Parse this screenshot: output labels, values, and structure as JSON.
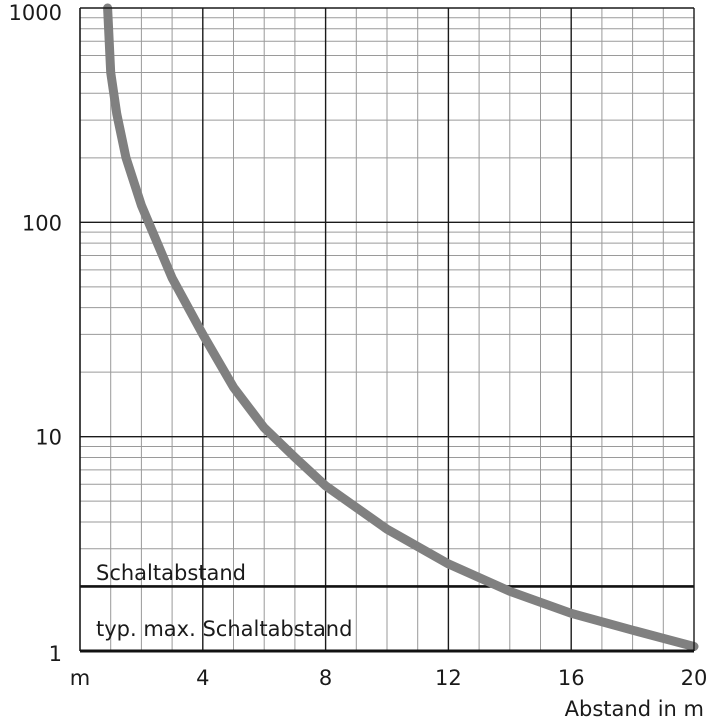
{
  "chart_data": {
    "type": "line",
    "title": "",
    "xlabel": "Abstand in m",
    "ylabel": "",
    "xlim": [
      0,
      20
    ],
    "ylim": [
      1,
      1000
    ],
    "yscale": "log",
    "grid": true,
    "x_ticks": [
      {
        "value": 0,
        "label": "m"
      },
      {
        "value": 4,
        "label": "4"
      },
      {
        "value": 8,
        "label": "8"
      },
      {
        "value": 12,
        "label": "12"
      },
      {
        "value": 16,
        "label": "16"
      },
      {
        "value": 20,
        "label": "20"
      }
    ],
    "y_ticks": [
      {
        "value": 1,
        "label": "1"
      },
      {
        "value": 10,
        "label": "10"
      },
      {
        "value": 100,
        "label": "100"
      },
      {
        "value": 1000,
        "label": "1000"
      }
    ],
    "series": [
      {
        "color": "#808080",
        "x": [
          0.9,
          1.0,
          1.2,
          1.5,
          2.0,
          3.0,
          4.0,
          5.0,
          6.0,
          7.0,
          8.0,
          10.0,
          12.0,
          14.0,
          16.0,
          18.0,
          20.0
        ],
        "y": [
          1000,
          500,
          320,
          200,
          120,
          55,
          30,
          17,
          11,
          8,
          5.9,
          3.7,
          2.55,
          1.9,
          1.5,
          1.25,
          1.05
        ]
      }
    ],
    "reference_lines": [
      {
        "y": 2,
        "label_above": "Schaltabstand",
        "label_below": "typ. max. Schaltabstand"
      }
    ]
  }
}
